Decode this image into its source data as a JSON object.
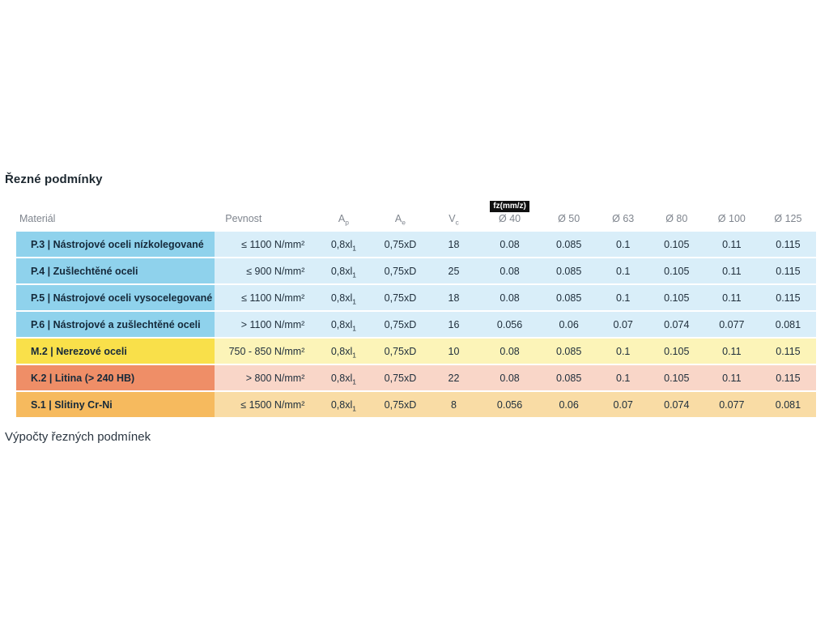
{
  "page": {
    "title": "Řezné podmínky",
    "footer_heading": "Výpočty řezných podmínek"
  },
  "colors": {
    "blue_material": "#8fd2ec",
    "blue_row": "#d9eef9",
    "yellow_material": "#f9e04a",
    "yellow_row": "#fcf4b8",
    "salmon_material": "#ef8e67",
    "salmon_row": "#f9d6c8",
    "orange_material": "#f6ba5e",
    "orange_row": "#f9dca5",
    "fz_badge_bg": "#101010",
    "fz_badge_text": "#ffffff",
    "header_text": "#7f858e",
    "body_text": "#1e2d3a"
  },
  "table": {
    "fz_badge": "fz(mm/z)",
    "columns": {
      "material": "Materiál",
      "pevnost": "Pevnost",
      "ap_base": "A",
      "ap_sub": "p",
      "ae_base": "A",
      "ae_sub": "e",
      "vc_base": "V",
      "vc_sub": "c",
      "diameters": [
        "Ø 40",
        "Ø 50",
        "Ø 63",
        "Ø 80",
        "Ø 100",
        "Ø 125"
      ]
    },
    "rows": [
      {
        "material": "P.3 | Nástrojové oceli nízkolegované",
        "pevnost": "≤ 1100 N/mm²",
        "ap_base": "0,8xl",
        "ap_sub": "1",
        "ae": "0,75xD",
        "vc": "18",
        "fz": [
          "0.08",
          "0.085",
          "0.1",
          "0.105",
          "0.11",
          "0.115"
        ],
        "theme": "blue"
      },
      {
        "material": "P.4 | Zušlechtěné oceli",
        "pevnost": "≤ 900 N/mm²",
        "ap_base": "0,8xl",
        "ap_sub": "1",
        "ae": "0,75xD",
        "vc": "25",
        "fz": [
          "0.08",
          "0.085",
          "0.1",
          "0.105",
          "0.11",
          "0.115"
        ],
        "theme": "blue"
      },
      {
        "material": "P.5 | Nástrojové oceli vysocelegované",
        "pevnost": "≤ 1100 N/mm²",
        "ap_base": "0,8xl",
        "ap_sub": "1",
        "ae": "0,75xD",
        "vc": "18",
        "fz": [
          "0.08",
          "0.085",
          "0.1",
          "0.105",
          "0.11",
          "0.115"
        ],
        "theme": "blue"
      },
      {
        "material": "P.6 | Nástrojové a zušlechtěné oceli",
        "pevnost": "> 1100 N/mm²",
        "ap_base": "0,8xl",
        "ap_sub": "1",
        "ae": "0,75xD",
        "vc": "16",
        "fz": [
          "0.056",
          "0.06",
          "0.07",
          "0.074",
          "0.077",
          "0.081"
        ],
        "theme": "yellow_next_blue"
      },
      {
        "material": "M.2 | Nerezové oceli",
        "pevnost": "750 - 850 N/mm²",
        "ap_base": "0,8xl",
        "ap_sub": "1",
        "ae": "0,75xD",
        "vc": "10",
        "fz": [
          "0.08",
          "0.085",
          "0.1",
          "0.105",
          "0.11",
          "0.115"
        ],
        "theme": "yellow"
      },
      {
        "material": "K.2 | Litina (> 240 HB)",
        "pevnost": "> 800 N/mm²",
        "ap_base": "0,8xl",
        "ap_sub": "1",
        "ae": "0,75xD",
        "vc": "22",
        "fz": [
          "0.08",
          "0.085",
          "0.1",
          "0.105",
          "0.11",
          "0.115"
        ],
        "theme": "salmon"
      },
      {
        "material": "S.1 | Slitiny Cr-Ni",
        "pevnost": "≤ 1500 N/mm²",
        "ap_base": "0,8xl",
        "ap_sub": "1",
        "ae": "0,75xD",
        "vc": "8",
        "fz": [
          "0.056",
          "0.06",
          "0.07",
          "0.074",
          "0.077",
          "0.081"
        ],
        "theme": "orange"
      }
    ]
  }
}
